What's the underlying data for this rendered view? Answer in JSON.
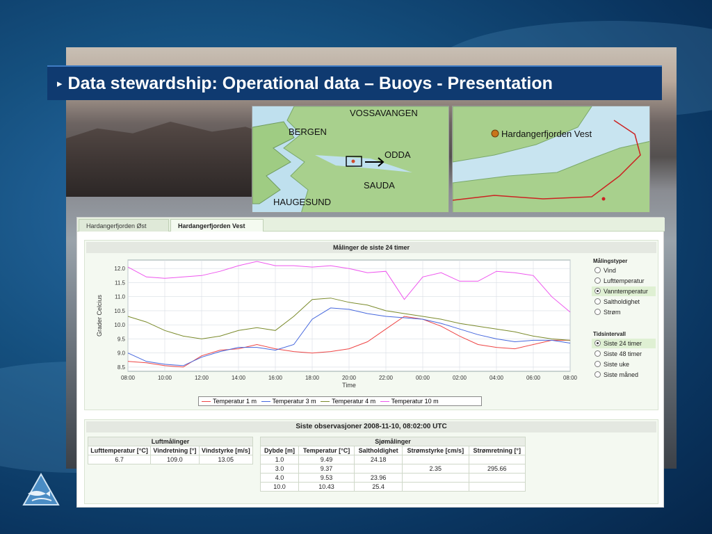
{
  "slide": {
    "title": "Data stewardship: Operational data – Buoys - Presentation",
    "bullet": "▸"
  },
  "maps": {
    "region_labels": [
      "VOSSAVANGEN",
      "BERGEN",
      "ODDA",
      "SAUDA",
      "HAUGESUND"
    ],
    "detail_label": "Hardangerfjorden Vest"
  },
  "tabs": [
    "Hardangerfjorden Øst",
    "Hardangerfjorden Vest"
  ],
  "active_tab": "Hardangerfjorden Vest",
  "chart_panel": {
    "title": "Målinger de siste 24 timer",
    "measurement_types_title": "Målingstyper",
    "measurement_types": [
      "Vind",
      "Lufttemperatur",
      "Vanntemperatur",
      "Saltholdighet",
      "Strøm"
    ],
    "selected_measurement": "Vanntemperatur",
    "time_interval_title": "Tidsintervall",
    "time_intervals": [
      "Siste 24 timer",
      "Siste 48 timer",
      "Siste uke",
      "Siste måned"
    ],
    "selected_interval": "Siste 24 timer"
  },
  "chart_data": {
    "type": "line",
    "xlabel": "Time",
    "ylabel": "Grader Celcius",
    "x_ticks": [
      "08:00",
      "10:00",
      "12:00",
      "14:00",
      "16:00",
      "18:00",
      "20:00",
      "22:00",
      "00:00",
      "02:00",
      "04:00",
      "06:00",
      "08:00"
    ],
    "y_ticks": [
      8.5,
      9.0,
      9.5,
      10.0,
      10.5,
      11.0,
      11.5,
      12.0
    ],
    "ylim": [
      8.35,
      12.3
    ],
    "xlim": [
      0,
      24
    ],
    "grid": true,
    "legend": "bottom",
    "series": [
      {
        "name": "Temperatur 1 m",
        "color": "#ee4444",
        "x": [
          0,
          1,
          2,
          3,
          4,
          5,
          6,
          7,
          8,
          9,
          10,
          11,
          12,
          13,
          14,
          15,
          16,
          17,
          18,
          19,
          20,
          21,
          22,
          23,
          24
        ],
        "y": [
          8.7,
          8.65,
          8.55,
          8.5,
          8.9,
          9.1,
          9.15,
          9.3,
          9.15,
          9.05,
          9.0,
          9.05,
          9.15,
          9.4,
          9.85,
          10.3,
          10.2,
          9.95,
          9.6,
          9.3,
          9.2,
          9.15,
          9.3,
          9.45,
          9.45
        ]
      },
      {
        "name": "Temperatur 3 m",
        "color": "#4466dd",
        "x": [
          0,
          1,
          2,
          3,
          4,
          5,
          6,
          7,
          8,
          9,
          10,
          11,
          12,
          13,
          14,
          15,
          16,
          17,
          18,
          19,
          20,
          21,
          22,
          23,
          24
        ],
        "y": [
          9.0,
          8.7,
          8.6,
          8.55,
          8.85,
          9.05,
          9.2,
          9.2,
          9.1,
          9.3,
          10.2,
          10.6,
          10.55,
          10.4,
          10.3,
          10.25,
          10.2,
          10.05,
          9.85,
          9.65,
          9.5,
          9.4,
          9.45,
          9.45,
          9.35
        ]
      },
      {
        "name": "Temperatur 4 m",
        "color": "#7a8a2a",
        "x": [
          0,
          1,
          2,
          3,
          4,
          5,
          6,
          7,
          8,
          9,
          10,
          11,
          12,
          13,
          14,
          15,
          16,
          17,
          18,
          19,
          20,
          21,
          22,
          23,
          24
        ],
        "y": [
          10.3,
          10.1,
          9.8,
          9.6,
          9.5,
          9.6,
          9.8,
          9.9,
          9.8,
          10.3,
          10.9,
          10.95,
          10.8,
          10.7,
          10.5,
          10.4,
          10.3,
          10.2,
          10.05,
          9.95,
          9.85,
          9.75,
          9.6,
          9.5,
          9.45
        ]
      },
      {
        "name": "Temperatur 10 m",
        "color": "#ee55ee",
        "x": [
          0,
          1,
          2,
          3,
          4,
          5,
          6,
          7,
          8,
          9,
          10,
          11,
          12,
          13,
          14,
          15,
          16,
          17,
          18,
          19,
          20,
          21,
          22,
          23,
          24
        ],
        "y": [
          12.05,
          11.7,
          11.65,
          11.7,
          11.75,
          11.9,
          12.1,
          12.25,
          12.1,
          12.1,
          12.05,
          12.1,
          12.0,
          11.85,
          11.9,
          10.9,
          11.7,
          11.85,
          11.55,
          11.55,
          11.9,
          11.85,
          11.75,
          11.0,
          10.45
        ]
      }
    ]
  },
  "observations": {
    "title": "Siste observasjoner 2008-11-10, 08:02:00 UTC",
    "air": {
      "group_title": "Luftmålinger",
      "headers": [
        "Lufttemperatur [°C]",
        "Vindretning [°]",
        "Vindstyrke [m/s]"
      ],
      "rows": [
        [
          "6.7",
          "109.0",
          "13.05"
        ]
      ]
    },
    "sea": {
      "group_title": "Sjømålinger",
      "headers": [
        "Dybde [m]",
        "Temperatur [°C]",
        "Saltholdighet",
        "Strømstyrke [cm/s]",
        "Strømretning [°]"
      ],
      "rows": [
        [
          "1.0",
          "9.49",
          "24.18",
          "",
          ""
        ],
        [
          "3.0",
          "9.37",
          "",
          "2.35",
          "295.66"
        ],
        [
          "4.0",
          "9.53",
          "23.96",
          "",
          ""
        ],
        [
          "10.0",
          "10.43",
          "25.4",
          "",
          ""
        ]
      ]
    }
  }
}
